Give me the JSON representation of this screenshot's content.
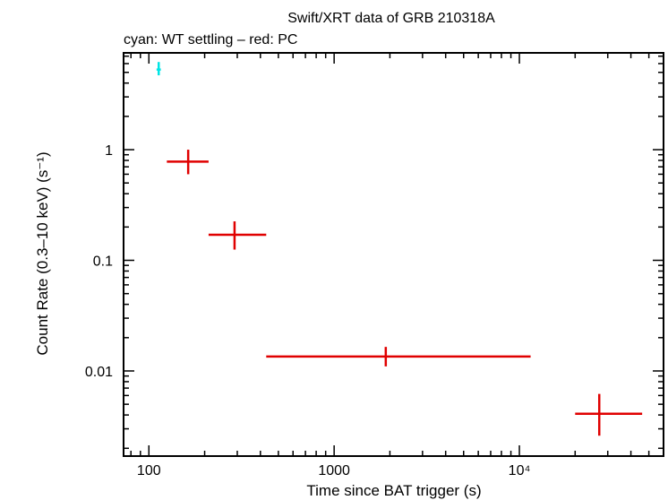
{
  "chart_data": {
    "type": "scatter",
    "title": "Swift/XRT data of GRB 210318A",
    "subtitle": "cyan: WT settling – red: PC",
    "xlabel": "Time since BAT trigger (s)",
    "ylabel": "Count Rate (0.3–10 keV) (s⁻¹)",
    "x_scale": "log",
    "y_scale": "log",
    "xlim": [
      73,
      60000
    ],
    "ylim": [
      0.0017,
      7.5
    ],
    "x_ticks": [
      {
        "value": 100,
        "label": "100"
      },
      {
        "value": 1000,
        "label": "1000"
      },
      {
        "value": 10000,
        "label": "10⁴"
      }
    ],
    "y_ticks": [
      {
        "value": 1,
        "label": "1"
      },
      {
        "value": 0.1,
        "label": "0.1"
      },
      {
        "value": 0.01,
        "label": "0.01"
      }
    ],
    "grid": false,
    "series": [
      {
        "name": "WT settling",
        "color": "#00e5e5",
        "points": [
          {
            "x": 113,
            "y": 5.3,
            "xerr": [
              110,
              116
            ],
            "yerr": [
              4.7,
              6.2
            ]
          }
        ]
      },
      {
        "name": "PC",
        "color": "#e00000",
        "points": [
          {
            "x": 163,
            "y": 0.78,
            "xerr": [
              125,
              210
            ],
            "yerr": [
              0.6,
              1.0
            ]
          },
          {
            "x": 290,
            "y": 0.17,
            "xerr": [
              210,
              430
            ],
            "yerr": [
              0.125,
              0.225
            ]
          },
          {
            "x": 1900,
            "y": 0.0135,
            "xerr": [
              430,
              11500
            ],
            "yerr": [
              0.011,
              0.0165
            ]
          },
          {
            "x": 27000,
            "y": 0.0041,
            "xerr": [
              20000,
              46000
            ],
            "yerr": [
              0.0026,
              0.0062
            ]
          }
        ]
      }
    ]
  }
}
